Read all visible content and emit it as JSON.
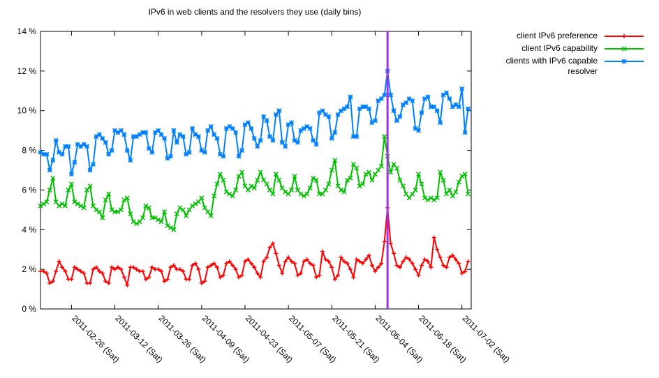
{
  "chart_data": {
    "type": "line",
    "title": "IPv6 in web clients and the resolvers they use (daily bins)",
    "x": [
      "2011-02-16",
      "2011-02-17",
      "2011-02-18",
      "2011-02-19",
      "2011-02-20",
      "2011-02-21",
      "2011-02-22",
      "2011-02-23",
      "2011-02-24",
      "2011-02-25",
      "2011-02-26",
      "2011-02-27",
      "2011-02-28",
      "2011-03-01",
      "2011-03-02",
      "2011-03-03",
      "2011-03-04",
      "2011-03-05",
      "2011-03-06",
      "2011-03-07",
      "2011-03-08",
      "2011-03-09",
      "2011-03-10",
      "2011-03-11",
      "2011-03-12",
      "2011-03-13",
      "2011-03-14",
      "2011-03-15",
      "2011-03-16",
      "2011-03-17",
      "2011-03-18",
      "2011-03-19",
      "2011-03-20",
      "2011-03-21",
      "2011-03-22",
      "2011-03-23",
      "2011-03-24",
      "2011-03-25",
      "2011-03-26",
      "2011-03-27",
      "2011-03-28",
      "2011-03-29",
      "2011-03-30",
      "2011-03-31",
      "2011-04-01",
      "2011-04-02",
      "2011-04-03",
      "2011-04-04",
      "2011-04-05",
      "2011-04-06",
      "2011-04-07",
      "2011-04-08",
      "2011-04-09",
      "2011-04-10",
      "2011-04-11",
      "2011-04-12",
      "2011-04-13",
      "2011-04-14",
      "2011-04-15",
      "2011-04-16",
      "2011-04-17",
      "2011-04-18",
      "2011-04-19",
      "2011-04-20",
      "2011-04-21",
      "2011-04-22",
      "2011-04-23",
      "2011-04-24",
      "2011-04-25",
      "2011-04-26",
      "2011-04-27",
      "2011-04-28",
      "2011-04-29",
      "2011-04-30",
      "2011-05-01",
      "2011-05-02",
      "2011-05-03",
      "2011-05-04",
      "2011-05-05",
      "2011-05-06",
      "2011-05-07",
      "2011-05-08",
      "2011-05-09",
      "2011-05-10",
      "2011-05-11",
      "2011-05-12",
      "2011-05-13",
      "2011-05-14",
      "2011-05-15",
      "2011-05-16",
      "2011-05-17",
      "2011-05-18",
      "2011-05-19",
      "2011-05-20",
      "2011-05-21",
      "2011-05-22",
      "2011-05-23",
      "2011-05-24",
      "2011-05-25",
      "2011-05-26",
      "2011-05-27",
      "2011-05-28",
      "2011-05-29",
      "2011-05-30",
      "2011-05-31",
      "2011-06-01",
      "2011-06-02",
      "2011-06-03",
      "2011-06-04",
      "2011-06-05",
      "2011-06-06",
      "2011-06-07",
      "2011-06-08",
      "2011-06-09",
      "2011-06-10",
      "2011-06-11",
      "2011-06-12",
      "2011-06-13",
      "2011-06-14",
      "2011-06-15",
      "2011-06-16",
      "2011-06-17",
      "2011-06-18",
      "2011-06-19",
      "2011-06-20",
      "2011-06-21",
      "2011-06-22",
      "2011-06-23",
      "2011-06-24",
      "2011-06-25",
      "2011-06-26",
      "2011-06-27",
      "2011-06-28",
      "2011-06-29",
      "2011-06-30",
      "2011-07-01",
      "2011-07-02",
      "2011-07-03",
      "2011-07-04"
    ],
    "series": [
      {
        "name": "client IPv6 preference",
        "color": "#ff0000",
        "marker": "plus",
        "values": [
          1.9,
          1.9,
          1.8,
          1.3,
          1.4,
          1.9,
          2.4,
          2.1,
          1.9,
          1.5,
          1.5,
          2.1,
          2.0,
          1.9,
          1.8,
          1.3,
          1.3,
          2.0,
          2.1,
          1.9,
          1.8,
          1.4,
          1.3,
          2.1,
          2.0,
          2.1,
          2.0,
          1.6,
          1.2,
          2.1,
          2.1,
          2.0,
          1.9,
          1.9,
          1.5,
          1.6,
          2.1,
          2.0,
          2.0,
          1.9,
          1.4,
          1.5,
          2.1,
          2.2,
          2.0,
          2.0,
          1.9,
          1.5,
          1.5,
          2.2,
          2.3,
          2.0,
          1.3,
          1.4,
          2.1,
          2.2,
          2.3,
          2.1,
          1.6,
          1.7,
          2.3,
          2.4,
          2.2,
          2.0,
          1.6,
          1.7,
          2.4,
          2.5,
          2.3,
          2.1,
          1.8,
          1.6,
          2.4,
          2.6,
          3.1,
          3.3,
          2.8,
          2.2,
          1.8,
          2.4,
          2.6,
          2.4,
          2.3,
          1.7,
          1.8,
          2.4,
          2.5,
          2.3,
          2.2,
          1.6,
          1.7,
          2.9,
          2.5,
          2.4,
          2.1,
          1.5,
          1.7,
          2.6,
          2.4,
          2.3,
          2.0,
          1.6,
          2.5,
          2.4,
          2.3,
          2.5,
          2.7,
          2.2,
          1.9,
          2.1,
          2.3,
          3.4,
          5.1,
          3.3,
          2.8,
          2.2,
          2.1,
          2.4,
          2.6,
          2.5,
          2.3,
          2.0,
          1.7,
          2.2,
          2.5,
          2.4,
          2.1,
          3.6,
          3.0,
          2.6,
          2.2,
          2.1,
          2.6,
          2.7,
          2.5,
          2.3,
          1.8,
          1.9,
          2.4
        ]
      },
      {
        "name": "client IPv6 capability",
        "color": "#00c000",
        "marker": "cross",
        "values": [
          5.2,
          5.3,
          5.4,
          6.0,
          6.6,
          5.4,
          5.2,
          5.3,
          5.2,
          6.0,
          6.3,
          5.4,
          5.3,
          5.2,
          5.1,
          6.0,
          6.2,
          5.2,
          5.0,
          4.9,
          4.6,
          5.5,
          5.8,
          5.0,
          4.9,
          4.9,
          5.0,
          5.5,
          5.6,
          4.8,
          4.4,
          4.3,
          4.4,
          4.6,
          5.2,
          5.1,
          4.6,
          4.6,
          4.5,
          4.4,
          4.9,
          4.2,
          4.1,
          4.0,
          4.8,
          5.1,
          5.0,
          4.7,
          5.0,
          5.2,
          5.3,
          5.4,
          5.6,
          5.1,
          4.9,
          4.7,
          5.7,
          6.3,
          6.8,
          6.5,
          5.9,
          5.8,
          5.7,
          6.0,
          6.7,
          6.9,
          6.2,
          6.0,
          6.2,
          6.1,
          6.5,
          6.9,
          6.5,
          6.3,
          6.0,
          5.8,
          6.8,
          6.5,
          6.1,
          5.9,
          5.8,
          6.0,
          6.7,
          6.0,
          5.8,
          5.7,
          5.8,
          6.1,
          6.6,
          6.5,
          5.8,
          5.8,
          6.0,
          6.3,
          7.0,
          7.5,
          6.2,
          6.0,
          5.9,
          6.5,
          6.6,
          7.3,
          7.1,
          6.2,
          6.3,
          6.8,
          6.9,
          6.5,
          6.8,
          7.0,
          7.2,
          8.7,
          7.7,
          6.9,
          7.3,
          7.1,
          6.5,
          6.2,
          5.8,
          5.6,
          5.8,
          6.0,
          6.8,
          6.3,
          5.6,
          5.5,
          5.6,
          5.5,
          5.6,
          6.9,
          6.5,
          5.8,
          6.0,
          5.7,
          5.9,
          6.4,
          6.7,
          6.8,
          5.8
        ]
      },
      {
        "name": "clients with IPv6 capable resolver",
        "color": "#0080ff",
        "marker": "star",
        "values": [
          7.9,
          7.8,
          7.8,
          7.0,
          7.5,
          8.5,
          7.9,
          7.8,
          8.2,
          8.2,
          6.8,
          7.4,
          8.3,
          8.2,
          8.3,
          8.2,
          7.0,
          7.3,
          8.7,
          8.8,
          8.6,
          8.4,
          7.8,
          8.0,
          9.0,
          8.9,
          9.0,
          8.8,
          8.0,
          7.5,
          8.7,
          8.7,
          8.8,
          8.9,
          8.9,
          8.1,
          7.9,
          8.9,
          9.0,
          8.8,
          8.6,
          7.6,
          7.7,
          9.0,
          8.4,
          8.8,
          8.7,
          7.8,
          7.9,
          9.1,
          8.8,
          8.7,
          8.0,
          7.9,
          9.0,
          9.2,
          8.8,
          8.6,
          7.8,
          7.7,
          9.1,
          9.2,
          9.1,
          8.9,
          7.7,
          8.0,
          9.3,
          9.4,
          9.1,
          8.6,
          8.2,
          8.5,
          9.7,
          9.5,
          8.7,
          8.5,
          9.8,
          10.0,
          8.4,
          8.2,
          9.3,
          9.4,
          8.5,
          8.4,
          9.0,
          9.1,
          9.2,
          9.1,
          8.5,
          8.3,
          9.9,
          10.0,
          9.8,
          9.7,
          8.6,
          8.9,
          9.8,
          10.0,
          10.1,
          10.2,
          10.7,
          8.7,
          8.7,
          10.1,
          10.2,
          10.2,
          10.1,
          9.4,
          9.5,
          10.5,
          10.6,
          10.8,
          12.0,
          10.8,
          10.0,
          9.5,
          9.7,
          10.3,
          10.4,
          10.6,
          10.5,
          9.1,
          9.0,
          9.9,
          10.6,
          10.7,
          10.2,
          10.2,
          10.0,
          9.4,
          10.8,
          10.9,
          10.6,
          10.2,
          10.3,
          10.2,
          11.1,
          8.9,
          10.1
        ]
      }
    ],
    "marker_line": {
      "x": "2011-06-08",
      "color": "#a030e0"
    },
    "xlim": [
      "2011-02-16",
      "2011-07-05"
    ],
    "xticks": [
      {
        "value": "2011-02-26",
        "label": "2011-02-26 (Sat)"
      },
      {
        "value": "2011-03-12",
        "label": "2011-03-12 (Sat)"
      },
      {
        "value": "2011-03-26",
        "label": "2011-03-26 (Sat)"
      },
      {
        "value": "2011-04-09",
        "label": "2011-04-09 (Sat)"
      },
      {
        "value": "2011-04-23",
        "label": "2011-04-23 (Sat)"
      },
      {
        "value": "2011-05-07",
        "label": "2011-05-07 (Sat)"
      },
      {
        "value": "2011-05-21",
        "label": "2011-05-21 (Sat)"
      },
      {
        "value": "2011-06-04",
        "label": "2011-06-04 (Sat)"
      },
      {
        "value": "2011-06-18",
        "label": "2011-06-18 (Sat)"
      },
      {
        "value": "2011-07-02",
        "label": "2011-07-02 (Sat)"
      }
    ],
    "ylim": [
      0,
      14
    ],
    "yticks": [
      {
        "value": 0,
        "label": "0 %"
      },
      {
        "value": 2,
        "label": "2 %"
      },
      {
        "value": 4,
        "label": "4 %"
      },
      {
        "value": 6,
        "label": "6 %"
      },
      {
        "value": 8,
        "label": "8 %"
      },
      {
        "value": 10,
        "label": "10 %"
      },
      {
        "value": 12,
        "label": "12 %"
      },
      {
        "value": 14,
        "label": "14 %"
      }
    ],
    "legend": "outside-top-right"
  }
}
